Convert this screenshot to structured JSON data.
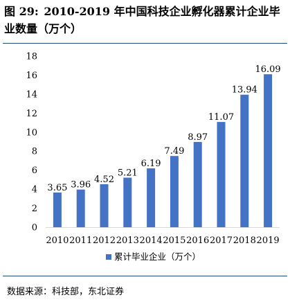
{
  "figure": {
    "label": "图 29:",
    "title": "2010-2019 年中国科技企业孵化器累计企业毕业数量（万个）"
  },
  "source": "数据来源：科技部，东北证券",
  "chart_data": {
    "type": "bar",
    "categories": [
      "2010",
      "2011",
      "2012",
      "2013",
      "2014",
      "2015",
      "2016",
      "2017",
      "2018",
      "2019"
    ],
    "series": [
      {
        "name": "累计毕业企业（万个）",
        "values": [
          3.65,
          3.96,
          4.52,
          5.21,
          6.19,
          7.49,
          8.97,
          11.07,
          13.94,
          16.09
        ],
        "data_labels": [
          "3.65",
          "3.96",
          "4.52",
          "5.21",
          "6.19",
          "7.49",
          "8.97",
          "11.07",
          "13.94",
          "16.09"
        ],
        "color": "#4472c4"
      }
    ],
    "ylim": [
      0,
      18
    ],
    "yticks": [
      "0",
      "2",
      "4",
      "6",
      "8",
      "10",
      "12",
      "14",
      "16",
      "18"
    ],
    "grid": false,
    "legend_position": "bottom"
  }
}
